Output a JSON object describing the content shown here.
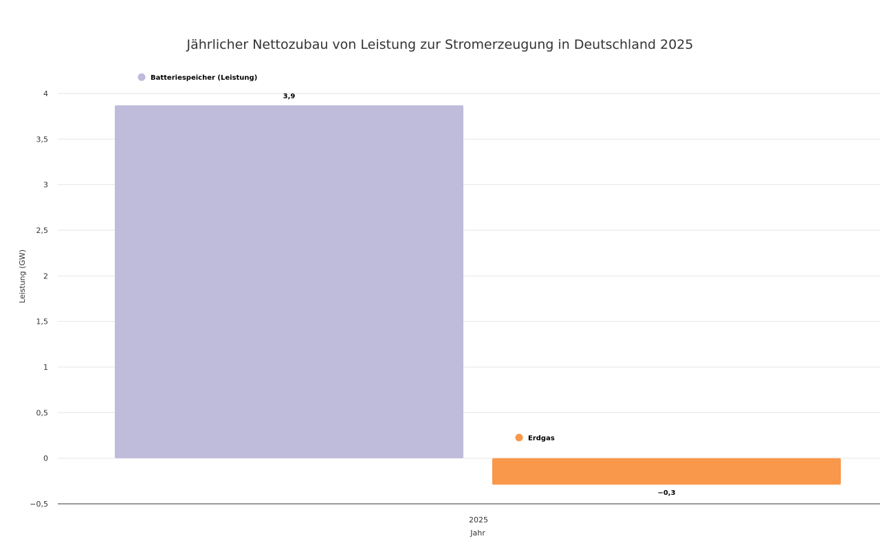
{
  "chart_data": {
    "type": "bar",
    "title": "Jährlicher Nettozubau von Leistung zur Stromerzeugung in Deutschland 2025",
    "xlabel": "Jahr",
    "ylabel": "Leistung (GW)",
    "categories": [
      "2025"
    ],
    "series": [
      {
        "name": "Batteriespeicher (Leistung)",
        "values": [
          3.87
        ],
        "label": "3,9",
        "color": "#bebbdb"
      },
      {
        "name": "Erdgas",
        "values": [
          -0.29
        ],
        "label": "−0,3",
        "color": "#f9974a"
      }
    ],
    "ylim": [
      -0.5,
      4
    ],
    "yticks": [
      {
        "value": 4,
        "label": "4"
      },
      {
        "value": 3.5,
        "label": "3,5"
      },
      {
        "value": 3,
        "label": "3"
      },
      {
        "value": 2.5,
        "label": "2,5"
      },
      {
        "value": 2,
        "label": "2"
      },
      {
        "value": 1.5,
        "label": "1,5"
      },
      {
        "value": 1,
        "label": "1"
      },
      {
        "value": 0.5,
        "label": "0,5"
      },
      {
        "value": 0,
        "label": "0"
      },
      {
        "value": -0.5,
        "label": "−0,5"
      }
    ],
    "grid": true,
    "legend": "above-each-bar"
  }
}
